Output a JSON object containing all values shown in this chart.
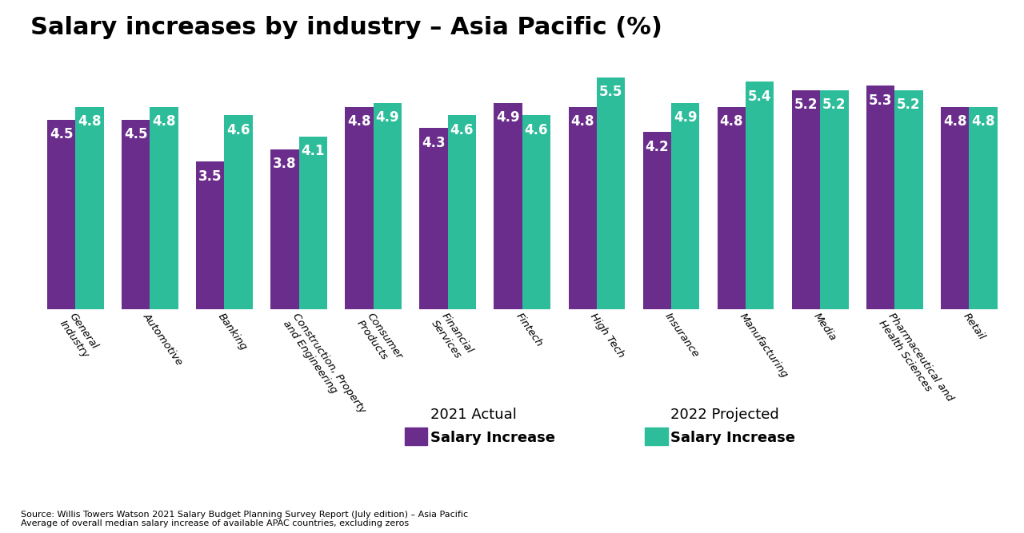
{
  "title": "Salary increases by industry – Asia Pacific (%)",
  "categories": [
    "General\nIndustry",
    "Automotive",
    "Banking",
    "Construction, Property\nand Engineering",
    "Consumer\nProducts",
    "Financial\nServices",
    "Fintech",
    "High Tech",
    "Insurance",
    "Manufacturing",
    "Media",
    "Pharmaceutical and\nHealth Sciences",
    "Retail"
  ],
  "actual_2021": [
    4.5,
    4.5,
    3.5,
    3.8,
    4.8,
    4.3,
    4.9,
    4.8,
    4.2,
    4.8,
    5.2,
    5.3,
    4.8
  ],
  "projected_2022": [
    4.8,
    4.8,
    4.6,
    4.1,
    4.9,
    4.6,
    4.6,
    5.5,
    4.9,
    5.4,
    5.2,
    5.2,
    4.8
  ],
  "color_actual": "#6B2D8B",
  "color_projected": "#2DBD9B",
  "legend_actual_line1": "2021 Actual",
  "legend_actual_line2": "Salary Increase",
  "legend_projected_line1": "2022 Projected",
  "legend_projected_line2": "Salary Increase",
  "source_text": "Source: Willis Towers Watson 2021 Salary Budget Planning Survey Report (July edition) – Asia Pacific\nAverage of overall median salary increase of available APAC countries, excluding zeros",
  "bar_width": 0.38,
  "ylim": [
    0,
    6.2
  ],
  "background_color": "#ffffff",
  "title_fontsize": 22,
  "label_fontsize": 9.5,
  "value_fontsize": 12,
  "legend_fontsize": 13,
  "source_fontsize": 8
}
